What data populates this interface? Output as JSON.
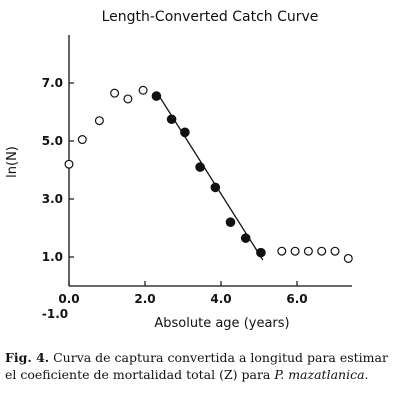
{
  "chart_data": {
    "type": "scatter",
    "title": "Length-Converted Catch Curve",
    "xlabel": "Absolute age (years)",
    "ylabel": "ln(N)",
    "xlim": [
      0,
      8
    ],
    "ylim": [
      0,
      8
    ],
    "x_ticks": [
      {
        "value": 0,
        "label": "0.0"
      },
      {
        "value": 2,
        "label": "2.0"
      },
      {
        "value": 4,
        "label": "4.0"
      },
      {
        "value": 6,
        "label": "6.0"
      }
    ],
    "extra_x_label": "-1.0",
    "y_ticks": [
      {
        "value": 1,
        "label": "1.0"
      },
      {
        "value": 3,
        "label": "3.0"
      },
      {
        "value": 5,
        "label": "5.0"
      },
      {
        "value": 7,
        "label": "7.0"
      }
    ],
    "series": [
      {
        "marker": "open-circle",
        "points": [
          {
            "x": 0.0,
            "y": 4.2
          },
          {
            "x": 0.35,
            "y": 5.05
          },
          {
            "x": 0.8,
            "y": 5.7
          },
          {
            "x": 1.2,
            "y": 6.65
          },
          {
            "x": 1.55,
            "y": 6.45
          },
          {
            "x": 1.95,
            "y": 6.75
          },
          {
            "x": 5.6,
            "y": 1.2
          },
          {
            "x": 5.95,
            "y": 1.2
          },
          {
            "x": 6.3,
            "y": 1.2
          },
          {
            "x": 6.65,
            "y": 1.2
          },
          {
            "x": 7.0,
            "y": 1.2
          },
          {
            "x": 7.35,
            "y": 0.95
          }
        ]
      },
      {
        "marker": "filled-circle",
        "points": [
          {
            "x": 2.3,
            "y": 6.55
          },
          {
            "x": 2.7,
            "y": 5.75
          },
          {
            "x": 3.05,
            "y": 5.3
          },
          {
            "x": 3.45,
            "y": 4.1
          },
          {
            "x": 3.85,
            "y": 3.4
          },
          {
            "x": 4.25,
            "y": 2.2
          },
          {
            "x": 4.65,
            "y": 1.65
          },
          {
            "x": 5.05,
            "y": 1.15
          }
        ]
      }
    ],
    "regression_line": {
      "x1": 2.3,
      "y1": 6.7,
      "x2": 5.1,
      "y2": 0.9
    }
  },
  "caption": {
    "lead": "Fig. 4.",
    "text": " Curva de captura convertida a longitud para estimar el coeficiente de mortalidad total (Z) para ",
    "species": "P. mazatlanica",
    "end": "."
  },
  "colors": {
    "ink": "#111111",
    "background": "#ffffff"
  }
}
